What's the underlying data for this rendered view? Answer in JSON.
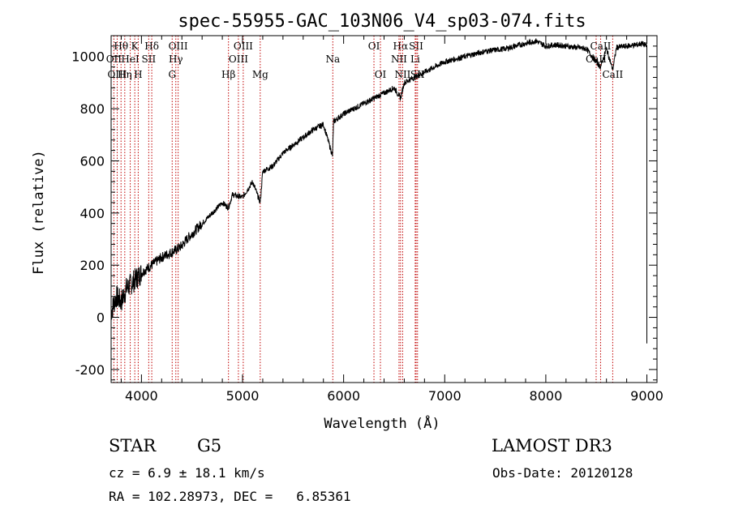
{
  "chart_data": {
    "type": "line",
    "title": "spec-55955-GAC_103N06_V4_sp03-074.fits",
    "xlabel": "Wavelength (Å)",
    "ylabel": "Flux (relative)",
    "xlim": [
      3700,
      9100
    ],
    "ylim": [
      -250,
      1080
    ],
    "xticks": [
      4000,
      5000,
      6000,
      7000,
      8000,
      9000
    ],
    "yticks": [
      -200,
      0,
      200,
      400,
      600,
      800,
      1000
    ],
    "series": [
      {
        "name": "flux",
        "x": [
          3700,
          3750,
          3800,
          3850,
          3900,
          3950,
          4000,
          4050,
          4100,
          4150,
          4200,
          4250,
          4300,
          4350,
          4400,
          4450,
          4500,
          4600,
          4700,
          4800,
          4860,
          4900,
          5000,
          5100,
          5175,
          5200,
          5300,
          5400,
          5500,
          5600,
          5700,
          5800,
          5890,
          5900,
          6000,
          6100,
          6200,
          6300,
          6400,
          6500,
          6563,
          6600,
          6700,
          6800,
          6900,
          7000,
          7100,
          7200,
          7300,
          7400,
          7500,
          7600,
          7700,
          7800,
          7900,
          8000,
          8100,
          8200,
          8300,
          8400,
          8498,
          8542,
          8600,
          8662,
          8700,
          8800,
          8900,
          8950,
          9000
        ],
        "y": [
          20,
          80,
          60,
          110,
          130,
          150,
          170,
          185,
          200,
          215,
          230,
          240,
          250,
          260,
          275,
          300,
          320,
          360,
          400,
          440,
          420,
          470,
          460,
          520,
          440,
          560,
          580,
          630,
          660,
          690,
          720,
          740,
          620,
          750,
          780,
          800,
          820,
          840,
          860,
          880,
          840,
          900,
          920,
          940,
          960,
          980,
          990,
          1000,
          1010,
          1020,
          1025,
          1030,
          1040,
          1050,
          1060,
          1040,
          1045,
          1040,
          1035,
          1030,
          980,
          960,
          1030,
          950,
          1035,
          1040,
          1045,
          1050,
          1040
        ]
      }
    ],
    "line_markers": [
      {
        "label": "Hθ",
        "x": 3798,
        "row": 1
      },
      {
        "label": "OII",
        "x": 3727,
        "row": 2
      },
      {
        "label": "OIII",
        "x": 3760,
        "row": 3
      },
      {
        "label": "K",
        "x": 3934,
        "row": 1
      },
      {
        "label": "HeI",
        "x": 3889,
        "row": 2
      },
      {
        "label": "Hη",
        "x": 3835,
        "row": 3
      },
      {
        "label": "SII",
        "x": 4072,
        "row": 2
      },
      {
        "label": "H",
        "x": 3968,
        "row": 3
      },
      {
        "label": "Hδ",
        "x": 4102,
        "row": 1
      },
      {
        "label": "OIII",
        "x": 4363,
        "row": 1
      },
      {
        "label": "Hγ",
        "x": 4340,
        "row": 2
      },
      {
        "label": "G",
        "x": 4304,
        "row": 3
      },
      {
        "label": "OIII",
        "x": 5007,
        "row": 1
      },
      {
        "label": "OIII",
        "x": 4959,
        "row": 2
      },
      {
        "label": "Hβ",
        "x": 4861,
        "row": 3
      },
      {
        "label": "Mg",
        "x": 5175,
        "row": 3
      },
      {
        "label": "Na",
        "x": 5893,
        "row": 2
      },
      {
        "label": "OI",
        "x": 6300,
        "row": 1
      },
      {
        "label": "OI",
        "x": 6364,
        "row": 3
      },
      {
        "label": "Hα",
        "x": 6563,
        "row": 1
      },
      {
        "label": "NII",
        "x": 6548,
        "row": 2
      },
      {
        "label": "NII",
        "x": 6584,
        "row": 3
      },
      {
        "label": "SII",
        "x": 6717,
        "row": 1
      },
      {
        "label": "Li",
        "x": 6708,
        "row": 2
      },
      {
        "label": "SII",
        "x": 6731,
        "row": 3
      },
      {
        "label": "CaII",
        "x": 8542,
        "row": 1
      },
      {
        "label": "CaII",
        "x": 8498,
        "row": 2
      },
      {
        "label": "CaII",
        "x": 8662,
        "row": 3
      }
    ]
  },
  "info": {
    "object_class": "STAR",
    "subclass": "G5",
    "survey": "LAMOST DR3",
    "redshift": "cz = 6.9 ± 18.1 km/s",
    "obs_date": "Obs-Date: 20120128",
    "coords": "RA = 102.28973, DEC =   6.85361"
  },
  "colors": {
    "marker_line": "#c00000",
    "spectrum": "#000000"
  }
}
